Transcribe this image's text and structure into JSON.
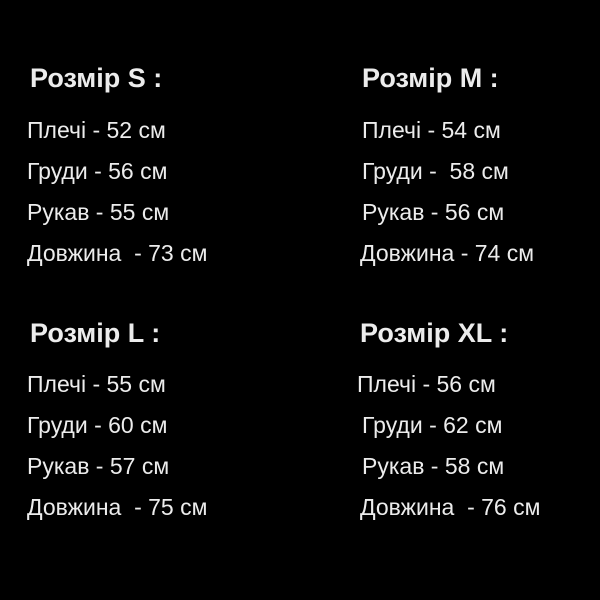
{
  "sizes": [
    {
      "title": "Розмір S :",
      "lines": [
        "Плечі - 52 см",
        "Груди - 56 см",
        "Рукав - 55 см",
        "Довжина  - 73 см"
      ]
    },
    {
      "title": "Розмір M :",
      "lines": [
        "Плечі - 54 см",
        "Груди -  58 см",
        "Рукав - 56 см",
        "Довжина - 74 см"
      ]
    },
    {
      "title": "Розмір L :",
      "lines": [
        "Плечі - 55 см",
        "Груди - 60 см",
        "Рукав - 57 см",
        "Довжина  - 75 см"
      ]
    },
    {
      "title": "Розмір XL :",
      "lines": [
        "Плечі - 56 см",
        "Груди - 62 см",
        "Рукав - 58 см",
        "Довжина  - 76 см"
      ]
    }
  ]
}
